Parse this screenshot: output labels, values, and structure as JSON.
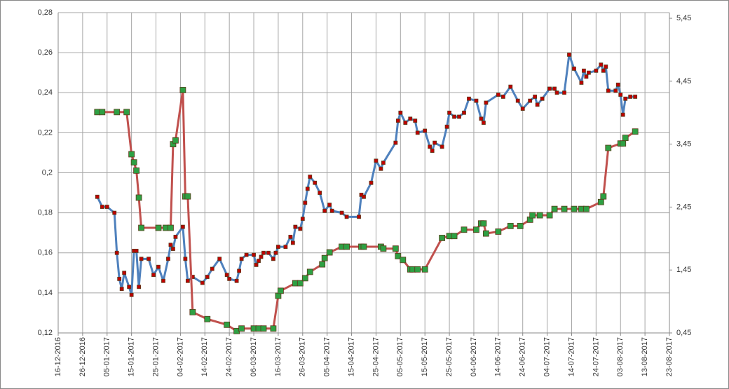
{
  "chart_data": {
    "type": "line",
    "xlim": [
      "2016-12-16",
      "2017-08-23"
    ],
    "xticks": [
      {
        "value": "2016-12-16",
        "label": "16-12-2016"
      },
      {
        "value": "2016-12-26",
        "label": "26-12-2016"
      },
      {
        "value": "2017-01-05",
        "label": "05-01-2017"
      },
      {
        "value": "2017-01-15",
        "label": "15-01-2017"
      },
      {
        "value": "2017-01-25",
        "label": "25-01-2017"
      },
      {
        "value": "2017-02-04",
        "label": "04-02-2017"
      },
      {
        "value": "2017-02-14",
        "label": "14-02-2017"
      },
      {
        "value": "2017-02-24",
        "label": "24-02-2017"
      },
      {
        "value": "2017-03-06",
        "label": "06-03-2017"
      },
      {
        "value": "2017-03-16",
        "label": "16-03-2017"
      },
      {
        "value": "2017-03-26",
        "label": "26-03-2017"
      },
      {
        "value": "2017-04-05",
        "label": "05-04-2017"
      },
      {
        "value": "2017-04-15",
        "label": "15-04-2017"
      },
      {
        "value": "2017-04-25",
        "label": "25-04-2017"
      },
      {
        "value": "2017-05-05",
        "label": "05-05-2017"
      },
      {
        "value": "2017-05-15",
        "label": "15-05-2017"
      },
      {
        "value": "2017-05-25",
        "label": "25-05-2017"
      },
      {
        "value": "2017-06-04",
        "label": "04-06-2017"
      },
      {
        "value": "2017-06-14",
        "label": "14-06-2017"
      },
      {
        "value": "2017-06-24",
        "label": "24-06-2017"
      },
      {
        "value": "2017-07-04",
        "label": "04-07-2017"
      },
      {
        "value": "2017-07-14",
        "label": "14-07-2017"
      },
      {
        "value": "2017-07-24",
        "label": "24-07-2017"
      },
      {
        "value": "2017-08-03",
        "label": "03-08-2017"
      },
      {
        "value": "2017-08-13",
        "label": "13-08-2017"
      },
      {
        "value": "2017-08-23",
        "label": "23-08-2017"
      }
    ],
    "ylim": [
      0.12,
      0.28
    ],
    "yticks": [
      {
        "value": 0.12,
        "label": "0,12"
      },
      {
        "value": 0.14,
        "label": "0,14"
      },
      {
        "value": 0.16,
        "label": "0,16"
      },
      {
        "value": 0.18,
        "label": "0,18"
      },
      {
        "value": 0.2,
        "label": "0,2"
      },
      {
        "value": 0.22,
        "label": "0,22"
      },
      {
        "value": 0.24,
        "label": "0,24"
      },
      {
        "value": 0.26,
        "label": "0,26"
      },
      {
        "value": 0.28,
        "label": "0,28"
      }
    ],
    "y2lim": [
      0.45,
      5.54
    ],
    "y2ticks": [
      {
        "value": 0.45,
        "label": "0,45"
      },
      {
        "value": 1.45,
        "label": "1,45"
      },
      {
        "value": 2.45,
        "label": "2,45"
      },
      {
        "value": 3.45,
        "label": "3,45"
      },
      {
        "value": 4.45,
        "label": "4,45"
      },
      {
        "value": 5.45,
        "label": "5,45"
      }
    ],
    "grid": true,
    "series": [
      {
        "color": "#4f81bd",
        "marker_color": "#c00000",
        "x": [
          "2017-01-01",
          "2017-01-03",
          "2017-01-05",
          "2017-01-08",
          "2017-01-09",
          "2017-01-10",
          "2017-01-11",
          "2017-01-12",
          "2017-01-14",
          "2017-01-15",
          "2017-01-16",
          "2017-01-17",
          "2017-01-18",
          "2017-01-19",
          "2017-01-22",
          "2017-01-24",
          "2017-01-26",
          "2017-01-28",
          "2017-01-30",
          "2017-01-31",
          "2017-02-01",
          "2017-02-02",
          "2017-02-05",
          "2017-02-06",
          "2017-02-07",
          "2017-02-09",
          "2017-02-13",
          "2017-02-15",
          "2017-02-17",
          "2017-02-20",
          "2017-02-23",
          "2017-02-24",
          "2017-02-27",
          "2017-02-28",
          "2017-03-01",
          "2017-03-03",
          "2017-03-06",
          "2017-03-07",
          "2017-03-08",
          "2017-03-09",
          "2017-03-10",
          "2017-03-12",
          "2017-03-14",
          "2017-03-15",
          "2017-03-16",
          "2017-03-19",
          "2017-03-21",
          "2017-03-22",
          "2017-03-23",
          "2017-03-25",
          "2017-03-26",
          "2017-03-27",
          "2017-03-28",
          "2017-03-29",
          "2017-03-31",
          "2017-04-02",
          "2017-04-04",
          "2017-04-06",
          "2017-04-07",
          "2017-04-11",
          "2017-04-13",
          "2017-04-18",
          "2017-04-19",
          "2017-04-20",
          "2017-04-23",
          "2017-04-25",
          "2017-04-27",
          "2017-04-28",
          "2017-05-03",
          "2017-05-04",
          "2017-05-05",
          "2017-05-07",
          "2017-05-09",
          "2017-05-11",
          "2017-05-12",
          "2017-05-15",
          "2017-05-17",
          "2017-05-18",
          "2017-05-19",
          "2017-05-22",
          "2017-05-24",
          "2017-05-25",
          "2017-05-27",
          "2017-05-29",
          "2017-05-31",
          "2017-06-02",
          "2017-06-05",
          "2017-06-07",
          "2017-06-08",
          "2017-06-09",
          "2017-06-14",
          "2017-06-16",
          "2017-06-19",
          "2017-06-22",
          "2017-06-24",
          "2017-06-27",
          "2017-06-29",
          "2017-06-30",
          "2017-07-02",
          "2017-07-05",
          "2017-07-07",
          "2017-07-08",
          "2017-07-11",
          "2017-07-13",
          "2017-07-15",
          "2017-07-18",
          "2017-07-19",
          "2017-07-20",
          "2017-07-21",
          "2017-07-24",
          "2017-07-26",
          "2017-07-27",
          "2017-07-28",
          "2017-07-29",
          "2017-08-01",
          "2017-08-02",
          "2017-08-03",
          "2017-08-04",
          "2017-08-05",
          "2017-08-07",
          "2017-08-09"
        ],
        "values": [
          0.188,
          0.183,
          0.183,
          0.18,
          0.16,
          0.147,
          0.142,
          0.15,
          0.143,
          0.139,
          0.161,
          0.161,
          0.143,
          0.157,
          0.157,
          0.149,
          0.153,
          0.146,
          0.157,
          0.164,
          0.162,
          0.168,
          0.173,
          0.157,
          0.146,
          0.148,
          0.145,
          0.148,
          0.152,
          0.157,
          0.149,
          0.147,
          0.146,
          0.151,
          0.157,
          0.159,
          0.159,
          0.154,
          0.156,
          0.158,
          0.16,
          0.16,
          0.157,
          0.16,
          0.163,
          0.163,
          0.168,
          0.165,
          0.173,
          0.172,
          0.177,
          0.185,
          0.192,
          0.198,
          0.195,
          0.19,
          0.181,
          0.184,
          0.181,
          0.18,
          0.178,
          0.178,
          0.189,
          0.188,
          0.195,
          0.206,
          0.202,
          0.205,
          0.215,
          0.226,
          0.23,
          0.225,
          0.227,
          0.226,
          0.22,
          0.221,
          0.213,
          0.211,
          0.215,
          0.213,
          0.223,
          0.23,
          0.228,
          0.228,
          0.23,
          0.237,
          0.236,
          0.227,
          0.225,
          0.235,
          0.239,
          0.238,
          0.243,
          0.236,
          0.232,
          0.236,
          0.238,
          0.234,
          0.237,
          0.242,
          0.242,
          0.24,
          0.24,
          0.259,
          0.252,
          0.245,
          0.251,
          0.248,
          0.25,
          0.251,
          0.254,
          0.251,
          0.253,
          0.241,
          0.241,
          0.244,
          0.239,
          0.229,
          0.237,
          0.238,
          0.238
        ]
      },
      {
        "color": "#c0504d",
        "marker_color": "#2ea043",
        "axis": "y2",
        "x": [
          "2017-01-01",
          "2017-01-03",
          "2017-01-09",
          "2017-01-13",
          "2017-01-15",
          "2017-01-16",
          "2017-01-17",
          "2017-01-18",
          "2017-01-19",
          "2017-01-26",
          "2017-01-29",
          "2017-01-31",
          "2017-02-01",
          "2017-02-02",
          "2017-02-05",
          "2017-02-06",
          "2017-02-07",
          "2017-02-09",
          "2017-02-15",
          "2017-02-23",
          "2017-02-27",
          "2017-03-01",
          "2017-03-06",
          "2017-03-08",
          "2017-03-10",
          "2017-03-14",
          "2017-03-16",
          "2017-03-17",
          "2017-03-23",
          "2017-03-25",
          "2017-03-27",
          "2017-03-29",
          "2017-04-03",
          "2017-04-04",
          "2017-04-06",
          "2017-04-11",
          "2017-04-13",
          "2017-04-19",
          "2017-04-20",
          "2017-04-27",
          "2017-04-28",
          "2017-05-03",
          "2017-05-04",
          "2017-05-06",
          "2017-05-09",
          "2017-05-10",
          "2017-05-12",
          "2017-05-15",
          "2017-05-22",
          "2017-05-25",
          "2017-05-27",
          "2017-05-31",
          "2017-06-05",
          "2017-06-07",
          "2017-06-08",
          "2017-06-09",
          "2017-06-14",
          "2017-06-19",
          "2017-06-23",
          "2017-06-27",
          "2017-06-28",
          "2017-07-01",
          "2017-07-05",
          "2017-07-07",
          "2017-07-11",
          "2017-07-15",
          "2017-07-18",
          "2017-07-20",
          "2017-07-26",
          "2017-07-27",
          "2017-07-29",
          "2017-08-03",
          "2017-08-04",
          "2017-08-05",
          "2017-08-09"
        ],
        "values": [
          3.96,
          3.96,
          3.96,
          3.96,
          3.29,
          3.16,
          3.03,
          2.6,
          2.12,
          2.12,
          2.12,
          2.12,
          3.45,
          3.51,
          4.31,
          2.62,
          2.62,
          0.78,
          0.67,
          0.58,
          0.48,
          0.52,
          0.52,
          0.52,
          0.52,
          0.52,
          1.04,
          1.12,
          1.24,
          1.24,
          1.32,
          1.42,
          1.54,
          1.64,
          1.73,
          1.82,
          1.82,
          1.82,
          1.82,
          1.82,
          1.79,
          1.79,
          1.67,
          1.61,
          1.46,
          1.46,
          1.46,
          1.46,
          1.96,
          1.99,
          1.99,
          2.09,
          2.09,
          2.19,
          2.19,
          2.03,
          2.06,
          2.15,
          2.15,
          2.25,
          2.32,
          2.32,
          2.32,
          2.42,
          2.42,
          2.42,
          2.42,
          2.42,
          2.53,
          2.62,
          3.39,
          3.46,
          3.46,
          3.55,
          3.65
        ]
      }
    ]
  }
}
